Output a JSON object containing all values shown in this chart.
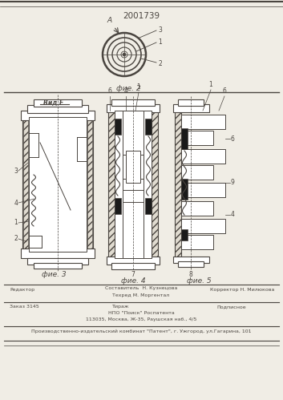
{
  "patent_number": "2001739",
  "bg_color": "#f0ede5",
  "draw_bg": "#ffffff",
  "lc": "#4a4540",
  "fig2_label": "фие. 2",
  "fig3_label": "фие. 3",
  "fig4_label": "фие. 4",
  "fig5_label": "фие. 5",
  "vid_e_label": "Вид Е",
  "A_label": "А",
  "footer_line1_left": "Редактор",
  "footer_line1_center1": "Составитель  Н. Кузнецова",
  "footer_line1_center2": "Техред М. Моргентал",
  "footer_line1_right": "Корректор Н. Милюкова",
  "footer_line2_left": "Заказ 3145",
  "footer_line2_center1": "Тираж",
  "footer_line2_center2": "Подписное",
  "footer_line2_center3": "НПО \"Поиск\" Роспатента",
  "footer_line2_center4": "113035, Москва, Ж-35, Раушская наб., 4/5",
  "footer_line3": "Производственно-издательский комбинат \"Патент\", г. Ужгород, ул.Гагарина, 101"
}
